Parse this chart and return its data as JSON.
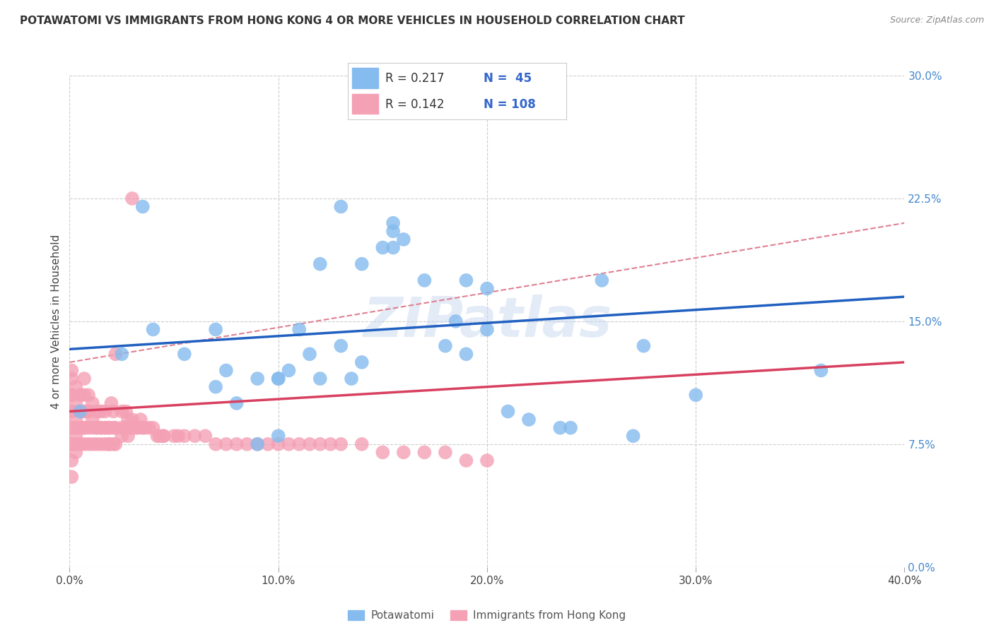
{
  "title": "POTAWATOMI VS IMMIGRANTS FROM HONG KONG 4 OR MORE VEHICLES IN HOUSEHOLD CORRELATION CHART",
  "source": "Source: ZipAtlas.com",
  "ylabel": "4 or more Vehicles in Household",
  "xlim": [
    0.0,
    0.4
  ],
  "ylim": [
    0.0,
    0.3
  ],
  "xticks": [
    0.0,
    0.1,
    0.2,
    0.3,
    0.4
  ],
  "xticklabels": [
    "0.0%",
    "10.0%",
    "20.0%",
    "30.0%",
    "40.0%"
  ],
  "yticks": [
    0.0,
    0.075,
    0.15,
    0.225,
    0.3
  ],
  "yticklabels": [
    "0.0%",
    "7.5%",
    "15.0%",
    "22.5%",
    "30.0%"
  ],
  "blue_color": "#85BBEE",
  "pink_color": "#F4A0B5",
  "blue_line_color": "#2060C0",
  "pink_line_color": "#D84060",
  "dashed_line_color": "#E08090",
  "watermark": "ZIPatlas",
  "legend_R_blue": "R = 0.217",
  "legend_N_blue": "N =  45",
  "legend_R_pink": "R = 0.142",
  "legend_N_pink": "N = 108",
  "legend_label_blue": "Potawatomi",
  "legend_label_pink": "Immigrants from Hong Kong",
  "blue_scatter_x": [
    0.005,
    0.025,
    0.04,
    0.055,
    0.07,
    0.07,
    0.075,
    0.08,
    0.09,
    0.1,
    0.1,
    0.105,
    0.11,
    0.115,
    0.12,
    0.13,
    0.135,
    0.14,
    0.14,
    0.15,
    0.155,
    0.155,
    0.16,
    0.17,
    0.18,
    0.185,
    0.19,
    0.2,
    0.21,
    0.22,
    0.235,
    0.24,
    0.275,
    0.035,
    0.09,
    0.1,
    0.12,
    0.13,
    0.155,
    0.19,
    0.2,
    0.255,
    0.3,
    0.36,
    0.27
  ],
  "blue_scatter_y": [
    0.095,
    0.13,
    0.145,
    0.13,
    0.11,
    0.145,
    0.12,
    0.1,
    0.115,
    0.115,
    0.115,
    0.12,
    0.145,
    0.13,
    0.185,
    0.135,
    0.115,
    0.125,
    0.185,
    0.195,
    0.195,
    0.205,
    0.2,
    0.175,
    0.135,
    0.15,
    0.13,
    0.17,
    0.095,
    0.09,
    0.085,
    0.085,
    0.135,
    0.22,
    0.075,
    0.08,
    0.115,
    0.22,
    0.21,
    0.175,
    0.145,
    0.175,
    0.105,
    0.12,
    0.08
  ],
  "pink_scatter_x": [
    0.001,
    0.001,
    0.001,
    0.001,
    0.001,
    0.001,
    0.001,
    0.001,
    0.001,
    0.001,
    0.003,
    0.003,
    0.003,
    0.003,
    0.003,
    0.003,
    0.003,
    0.005,
    0.005,
    0.005,
    0.005,
    0.005,
    0.007,
    0.007,
    0.007,
    0.007,
    0.007,
    0.007,
    0.007,
    0.009,
    0.009,
    0.009,
    0.009,
    0.009,
    0.011,
    0.011,
    0.011,
    0.011,
    0.013,
    0.013,
    0.013,
    0.013,
    0.015,
    0.015,
    0.015,
    0.015,
    0.017,
    0.017,
    0.017,
    0.017,
    0.019,
    0.019,
    0.019,
    0.019,
    0.02,
    0.021,
    0.021,
    0.021,
    0.022,
    0.022,
    0.025,
    0.025,
    0.025,
    0.027,
    0.027,
    0.028,
    0.028,
    0.029,
    0.03,
    0.03,
    0.032,
    0.033,
    0.034,
    0.035,
    0.036,
    0.038,
    0.04,
    0.042,
    0.043,
    0.045,
    0.05,
    0.052,
    0.055,
    0.06,
    0.065,
    0.07,
    0.075,
    0.08,
    0.085,
    0.09,
    0.095,
    0.1,
    0.105,
    0.11,
    0.115,
    0.12,
    0.125,
    0.13,
    0.14,
    0.15,
    0.16,
    0.17,
    0.18,
    0.19,
    0.2,
    0.022,
    0.03,
    0.045
  ],
  "pink_scatter_y": [
    0.055,
    0.065,
    0.075,
    0.085,
    0.095,
    0.105,
    0.115,
    0.12,
    0.095,
    0.105,
    0.07,
    0.08,
    0.09,
    0.1,
    0.11,
    0.075,
    0.085,
    0.085,
    0.095,
    0.105,
    0.075,
    0.085,
    0.075,
    0.085,
    0.095,
    0.105,
    0.115,
    0.085,
    0.095,
    0.095,
    0.105,
    0.075,
    0.085,
    0.095,
    0.09,
    0.1,
    0.075,
    0.085,
    0.085,
    0.095,
    0.075,
    0.085,
    0.085,
    0.095,
    0.075,
    0.085,
    0.085,
    0.095,
    0.075,
    0.085,
    0.075,
    0.085,
    0.075,
    0.085,
    0.1,
    0.075,
    0.085,
    0.095,
    0.075,
    0.085,
    0.085,
    0.095,
    0.08,
    0.085,
    0.095,
    0.08,
    0.09,
    0.085,
    0.085,
    0.09,
    0.085,
    0.085,
    0.09,
    0.085,
    0.085,
    0.085,
    0.085,
    0.08,
    0.08,
    0.08,
    0.08,
    0.08,
    0.08,
    0.08,
    0.08,
    0.075,
    0.075,
    0.075,
    0.075,
    0.075,
    0.075,
    0.075,
    0.075,
    0.075,
    0.075,
    0.075,
    0.075,
    0.075,
    0.075,
    0.07,
    0.07,
    0.07,
    0.07,
    0.065,
    0.065,
    0.13,
    0.225,
    0.08
  ],
  "blue_line_x0": 0.0,
  "blue_line_x1": 0.4,
  "blue_line_y0": 0.133,
  "blue_line_y1": 0.165,
  "pink_line_x0": 0.0,
  "pink_line_x1": 0.4,
  "pink_line_y0": 0.095,
  "pink_line_y1": 0.125,
  "dashed_line_x0": 0.0,
  "dashed_line_x1": 0.4,
  "dashed_line_y0": 0.125,
  "dashed_line_y1": 0.21,
  "grid_color": "#CCCCCC",
  "bg_color": "#FFFFFF",
  "tick_color_right": "#4488CC",
  "title_fontsize": 11,
  "tick_fontsize": 11,
  "axis_label_fontsize": 11,
  "legend_fontsize": 12,
  "r_text_color": "#3366CC",
  "n_text_color": "#3366CC"
}
